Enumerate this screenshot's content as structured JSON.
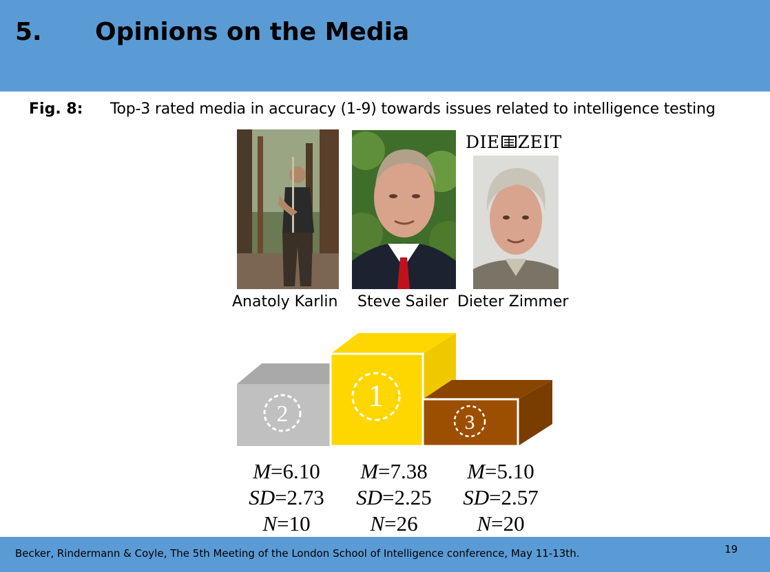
{
  "header": {
    "section_number": "5.",
    "title": "Opinions on the Media"
  },
  "figure": {
    "label": "Fig. 8:",
    "caption": "Top-3 rated media in accuracy (1-9) towards issues related to intelligence testing"
  },
  "people": [
    {
      "name": "Anatoly Karlin"
    },
    {
      "name": "Steve Sailer"
    },
    {
      "name": "Dieter Zimmer",
      "logo_text": [
        "DIE",
        "ZEIT"
      ]
    }
  ],
  "podium": {
    "places": [
      {
        "rank": "2",
        "color": "#c0c0c0"
      },
      {
        "rank": "1",
        "color": "#ffd700"
      },
      {
        "rank": "3",
        "color": "#9c4f00"
      }
    ]
  },
  "stats": [
    {
      "m_label": "M",
      "m": "=6.10",
      "sd_label": "SD",
      "sd": "=2.73",
      "n_label": "N",
      "n": "=10"
    },
    {
      "m_label": "M",
      "m": "=7.38",
      "sd_label": "SD",
      "sd": "=2.25",
      "n_label": "N",
      "n": "=26"
    },
    {
      "m_label": "M",
      "m": "=5.10",
      "sd_label": "SD",
      "sd": "=2.57",
      "n_label": "N",
      "n": "=20"
    }
  ],
  "footer": {
    "citation": "Becker, Rindermann & Coyle, The 5th Meeting of the London School of Intelligence conference, May 11-13th.",
    "page_number": "19"
  }
}
